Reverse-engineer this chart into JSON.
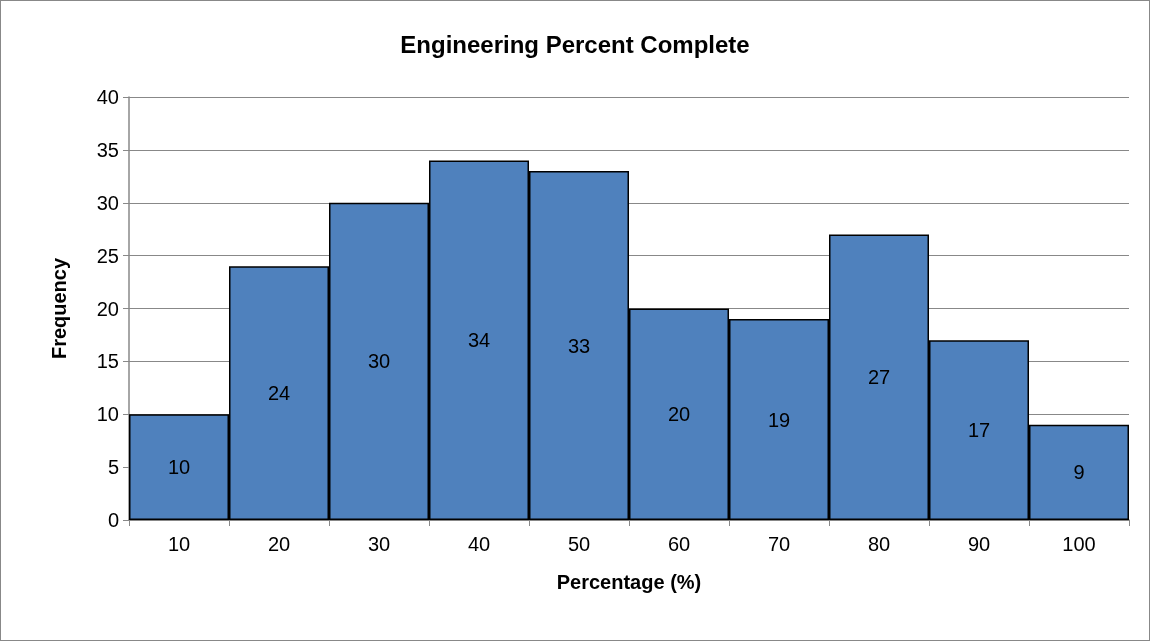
{
  "chart_data": {
    "type": "bar",
    "title": "Engineering Percent Complete",
    "xlabel": "Percentage (%)",
    "ylabel": "Frequency",
    "categories": [
      "10",
      "20",
      "30",
      "40",
      "50",
      "60",
      "70",
      "80",
      "90",
      "100"
    ],
    "values": [
      10,
      24,
      30,
      34,
      33,
      20,
      19,
      27,
      17,
      9
    ],
    "color": "#4f81bd",
    "ylim": [
      0,
      40
    ],
    "yticks": [
      0,
      5,
      10,
      15,
      20,
      25,
      30,
      35,
      40
    ],
    "grid": "y",
    "data_labels": true
  }
}
